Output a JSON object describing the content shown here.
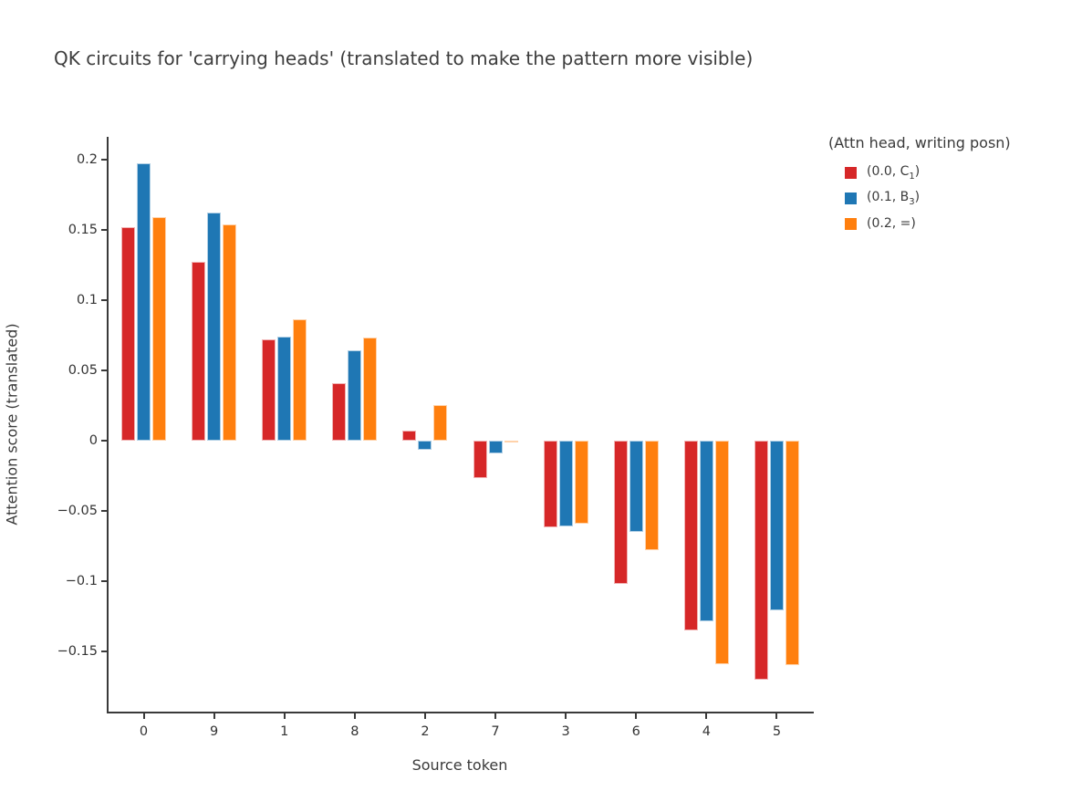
{
  "chart_data": {
    "type": "bar",
    "title": "QK circuits for 'carrying heads' (translated to make the pattern more visible)",
    "xlabel": "Source token",
    "ylabel": "Attention score (translated)",
    "legend_title": "(Attn head, writing posn)",
    "legend_position": "top-right",
    "grid": false,
    "categories": [
      "0",
      "9",
      "1",
      "8",
      "2",
      "7",
      "3",
      "6",
      "4",
      "5"
    ],
    "series": [
      {
        "name_pre": "(0.0, C",
        "name_sub": "1",
        "name_post": ")",
        "color": "#d62728",
        "values": [
          0.152,
          0.127,
          0.072,
          0.041,
          0.007,
          -0.027,
          -0.062,
          -0.102,
          -0.135,
          -0.17
        ]
      },
      {
        "name_pre": "(0.1, B",
        "name_sub": "3",
        "name_post": ")",
        "color": "#1f77b4",
        "values": [
          0.197,
          0.162,
          0.074,
          0.064,
          -0.007,
          -0.009,
          -0.061,
          -0.065,
          -0.129,
          -0.121
        ]
      },
      {
        "name_pre": "(0.2, =)",
        "name_sub": "",
        "name_post": "",
        "color": "#ff7f0e",
        "values": [
          0.159,
          0.154,
          0.086,
          0.073,
          0.025,
          0.0,
          -0.059,
          -0.078,
          -0.159,
          -0.16
        ]
      }
    ],
    "yticks": [
      0.2,
      0.15,
      0.1,
      0.05,
      0,
      -0.05,
      -0.1,
      -0.15
    ],
    "ytick_labels": [
      "0.2",
      "0.15",
      "0.1",
      "0.05",
      "0",
      "−0.05",
      "−0.1",
      "−0.15"
    ],
    "ylim": [
      -0.193,
      0.216
    ]
  },
  "colors": {
    "axis": "#3a3a3a",
    "tick_text": "#333333",
    "title_text": "#3d3d3d",
    "background": "#ffffff"
  }
}
